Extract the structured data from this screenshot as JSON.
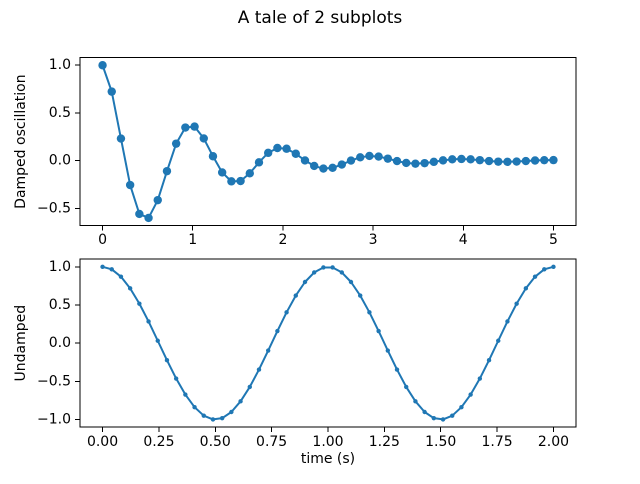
{
  "figure": {
    "title": "A tale of 2 subplots",
    "background": "#ffffff",
    "spine_color": "#000000",
    "text_color": "#000000"
  },
  "chart_data": [
    {
      "type": "line",
      "name": "damped-oscillation",
      "ylabel": "Damped oscillation",
      "xlabel": "",
      "legend": "none",
      "grid": false,
      "color": "#1f77b4",
      "marker": "o",
      "xlim": [
        -0.25,
        5.25
      ],
      "ylim": [
        -0.6792,
        1.08
      ],
      "xticks": {
        "values": [
          0,
          1,
          2,
          3,
          4,
          5
        ],
        "labels": [
          "0",
          "1",
          "2",
          "3",
          "4",
          "5"
        ]
      },
      "yticks": {
        "values": [
          1.0,
          0.5,
          0.0,
          -0.5
        ],
        "labels": [
          "1.0",
          "0.5",
          "0.0",
          "−0.5"
        ]
      },
      "x": [
        0.0,
        0.102,
        0.2041,
        0.3061,
        0.4082,
        0.5102,
        0.6122,
        0.7143,
        0.8163,
        0.9184,
        1.0204,
        1.1224,
        1.2245,
        1.3265,
        1.4286,
        1.5306,
        1.6327,
        1.7347,
        1.8367,
        1.9388,
        2.0408,
        2.1429,
        2.2449,
        2.3469,
        2.449,
        2.551,
        2.6531,
        2.7551,
        2.8571,
        2.9592,
        3.0612,
        3.1633,
        3.2653,
        3.3673,
        3.4694,
        3.5714,
        3.6735,
        3.7755,
        3.8776,
        3.9796,
        4.0816,
        4.1837,
        4.2857,
        4.3878,
        4.4898,
        4.5918,
        4.6939,
        4.7959,
        4.898,
        5.0
      ],
      "y": [
        1.0,
        0.7237,
        0.232,
        -0.2543,
        -0.5571,
        -0.5992,
        -0.4127,
        -0.1089,
        0.1789,
        0.3478,
        0.3575,
        0.2338,
        0.0469,
        -0.1228,
        -0.2159,
        -0.2124,
        -0.1314,
        -0.0169,
        0.0825,
        0.1334,
        0.1257,
        0.0731,
        0.0034,
        -0.0547,
        -0.082,
        -0.074,
        -0.0403,
        0.002,
        0.0358,
        0.0502,
        0.0434,
        0.0219,
        -0.0037,
        -0.0232,
        -0.0306,
        -0.0253,
        -0.0117,
        0.0037,
        0.0149,
        0.0185,
        0.0147,
        0.0062,
        -0.0031,
        -0.0095,
        -0.0112,
        -0.0085,
        -0.0032,
        0.0024,
        0.006,
        0.0067
      ]
    },
    {
      "type": "line",
      "name": "undamped",
      "ylabel": "Undamped",
      "xlabel": "time (s)",
      "legend": "none",
      "grid": false,
      "color": "#1f77b4",
      "marker": ".",
      "xlim": [
        -0.1,
        2.1
      ],
      "ylim": [
        -1.1,
        1.1
      ],
      "xticks": {
        "values": [
          0,
          0.25,
          0.5,
          0.75,
          1.0,
          1.25,
          1.5,
          1.75,
          2.0
        ],
        "labels": [
          "0.00",
          "0.25",
          "0.50",
          "0.75",
          "1.00",
          "1.25",
          "1.50",
          "1.75",
          "2.00"
        ]
      },
      "yticks": {
        "values": [
          1.0,
          0.5,
          0.0,
          -0.5,
          -1.0
        ],
        "labels": [
          "1.0",
          "0.5",
          "0.0",
          "−0.5",
          "−1.0"
        ]
      },
      "x": [
        0.0,
        0.0408,
        0.0816,
        0.1224,
        0.1633,
        0.2041,
        0.2449,
        0.2857,
        0.3265,
        0.3673,
        0.4082,
        0.449,
        0.4898,
        0.5306,
        0.5714,
        0.6122,
        0.6531,
        0.6939,
        0.7347,
        0.7755,
        0.8163,
        0.8571,
        0.898,
        0.9388,
        0.9796,
        1.0204,
        1.0612,
        1.102,
        1.1429,
        1.1837,
        1.2245,
        1.2653,
        1.3061,
        1.3469,
        1.3878,
        1.4286,
        1.4694,
        1.5102,
        1.551,
        1.5918,
        1.6327,
        1.6735,
        1.7143,
        1.7551,
        1.7959,
        1.8367,
        1.8776,
        1.9184,
        1.9592,
        2.0
      ],
      "y": [
        1.0,
        0.9673,
        0.8713,
        0.7184,
        0.518,
        0.2845,
        0.0321,
        -0.2225,
        -0.4627,
        -0.6724,
        -0.838,
        -0.9491,
        -0.9979,
        -0.9816,
        -0.901,
        -0.7613,
        -0.5722,
        -0.3454,
        -0.096,
        0.1595,
        0.4046,
        0.6235,
        0.8014,
        0.927,
        0.9918,
        0.9918,
        0.927,
        0.8014,
        0.6235,
        0.4046,
        0.1595,
        -0.096,
        -0.3454,
        -0.5722,
        -0.7613,
        -0.901,
        -0.9816,
        -0.9979,
        -0.9491,
        -0.838,
        -0.6724,
        -0.4627,
        -0.2225,
        0.0321,
        0.2845,
        0.518,
        0.7184,
        0.8713,
        0.9673,
        1.0
      ]
    }
  ]
}
